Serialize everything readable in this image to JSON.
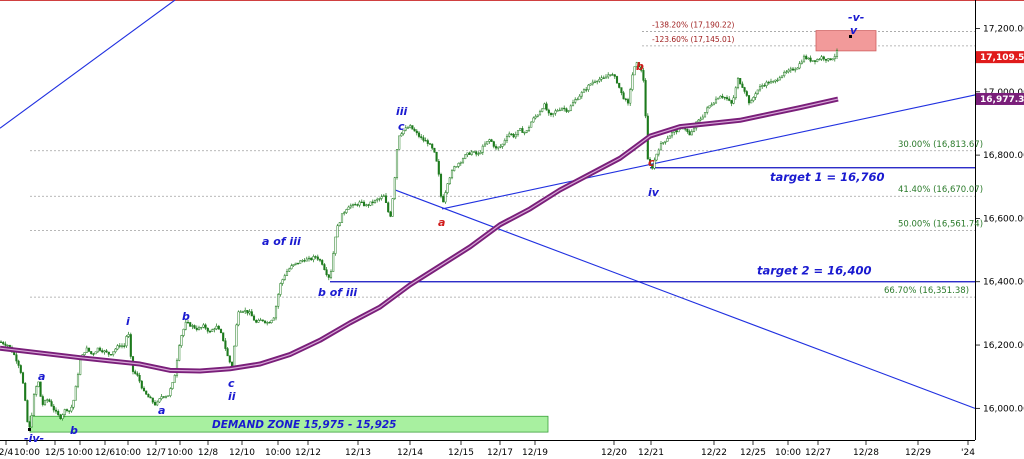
{
  "colors": {
    "candle_up": "#1d7a1d",
    "candle_down": "#1d7a1d",
    "ma": "#7a1f7a",
    "trend": "#2030e0",
    "fib": "#a0a0a0",
    "zone_fill": "#a8f0a0",
    "target_box": "#f29a9a",
    "price_tag": "#e01b1b",
    "ma_tag": "#7a1f7a"
  },
  "chart_data": {
    "type": "candlestick",
    "y_range": [
      15900,
      17290
    ],
    "y_ticks": [
      "17,200.00",
      "17,000.00",
      "16,800.00",
      "16,600.00",
      "16,400.00",
      "16,200.00",
      "16,000.00"
    ],
    "x_ticks": [
      "2/4",
      "10:00",
      "12/5",
      "10:00",
      "12/6",
      "10:00",
      "12/7",
      "10:00",
      "12/8",
      "12/10",
      "10:00",
      "12/12",
      "12/13",
      "12/14",
      "12/15",
      "12/17",
      "12/19",
      "12/20",
      "12/21",
      "12/22",
      "12/25",
      "10:00",
      "12/27",
      "12/28",
      "12/29",
      "'24"
    ],
    "price_path": [
      [
        0,
        16210
      ],
      [
        8,
        16200
      ],
      [
        14,
        16170
      ],
      [
        20,
        16130
      ],
      [
        24,
        16060
      ],
      [
        27,
        15960
      ],
      [
        30,
        15935
      ],
      [
        34,
        16040
      ],
      [
        38,
        16090
      ],
      [
        42,
        16010
      ],
      [
        48,
        16030
      ],
      [
        55,
        15990
      ],
      [
        60,
        15970
      ],
      [
        66,
        16000
      ],
      [
        70,
        15990
      ],
      [
        74,
        16030
      ],
      [
        80,
        16150
      ],
      [
        86,
        16190
      ],
      [
        92,
        16170
      ],
      [
        98,
        16190
      ],
      [
        104,
        16180
      ],
      [
        110,
        16170
      ],
      [
        116,
        16190
      ],
      [
        120,
        16200
      ],
      [
        124,
        16195
      ],
      [
        128,
        16250
      ],
      [
        132,
        16120
      ],
      [
        138,
        16100
      ],
      [
        144,
        16050
      ],
      [
        150,
        16030
      ],
      [
        156,
        16010
      ],
      [
        162,
        16040
      ],
      [
        168,
        16040
      ],
      [
        174,
        16090
      ],
      [
        180,
        16220
      ],
      [
        186,
        16270
      ],
      [
        192,
        16260
      ],
      [
        198,
        16250
      ],
      [
        204,
        16260
      ],
      [
        210,
        16240
      ],
      [
        216,
        16260
      ],
      [
        222,
        16230
      ],
      [
        228,
        16160
      ],
      [
        232,
        16130
      ],
      [
        238,
        16310
      ],
      [
        244,
        16310
      ],
      [
        250,
        16300
      ],
      [
        256,
        16270
      ],
      [
        262,
        16280
      ],
      [
        268,
        16270
      ],
      [
        274,
        16290
      ],
      [
        280,
        16390
      ],
      [
        286,
        16430
      ],
      [
        292,
        16450
      ],
      [
        298,
        16460
      ],
      [
        304,
        16470
      ],
      [
        310,
        16470
      ],
      [
        316,
        16480
      ],
      [
        322,
        16460
      ],
      [
        326,
        16430
      ],
      [
        330,
        16410
      ],
      [
        336,
        16560
      ],
      [
        342,
        16610
      ],
      [
        348,
        16640
      ],
      [
        354,
        16640
      ],
      [
        360,
        16650
      ],
      [
        366,
        16640
      ],
      [
        372,
        16650
      ],
      [
        378,
        16660
      ],
      [
        384,
        16670
      ],
      [
        390,
        16600
      ],
      [
        394,
        16700
      ],
      [
        398,
        16860
      ],
      [
        404,
        16880
      ],
      [
        410,
        16890
      ],
      [
        416,
        16870
      ],
      [
        422,
        16850
      ],
      [
        428,
        16840
      ],
      [
        434,
        16810
      ],
      [
        438,
        16760
      ],
      [
        442,
        16640
      ],
      [
        448,
        16720
      ],
      [
        454,
        16760
      ],
      [
        460,
        16780
      ],
      [
        466,
        16800
      ],
      [
        472,
        16810
      ],
      [
        478,
        16800
      ],
      [
        484,
        16830
      ],
      [
        490,
        16850
      ],
      [
        496,
        16820
      ],
      [
        502,
        16830
      ],
      [
        508,
        16870
      ],
      [
        514,
        16860
      ],
      [
        520,
        16880
      ],
      [
        526,
        16870
      ],
      [
        532,
        16910
      ],
      [
        538,
        16930
      ],
      [
        544,
        16960
      ],
      [
        550,
        16920
      ],
      [
        556,
        16940
      ],
      [
        562,
        16950
      ],
      [
        568,
        16940
      ],
      [
        574,
        16970
      ],
      [
        580,
        16990
      ],
      [
        586,
        17010
      ],
      [
        592,
        17030
      ],
      [
        598,
        17040
      ],
      [
        604,
        17040
      ],
      [
        610,
        17060
      ],
      [
        616,
        17040
      ],
      [
        622,
        16990
      ],
      [
        628,
        16960
      ],
      [
        632,
        17050
      ],
      [
        636,
        17090
      ],
      [
        640,
        17080
      ],
      [
        644,
        17030
      ],
      [
        648,
        16770
      ],
      [
        652,
        16760
      ],
      [
        656,
        16800
      ],
      [
        660,
        16830
      ],
      [
        666,
        16850
      ],
      [
        672,
        16870
      ],
      [
        678,
        16880
      ],
      [
        684,
        16890
      ],
      [
        690,
        16860
      ],
      [
        696,
        16900
      ],
      [
        702,
        16920
      ],
      [
        708,
        16950
      ],
      [
        714,
        16970
      ],
      [
        720,
        16990
      ],
      [
        726,
        16980
      ],
      [
        732,
        16960
      ],
      [
        738,
        17040
      ],
      [
        744,
        17010
      ],
      [
        750,
        16960
      ],
      [
        756,
        17000
      ],
      [
        762,
        17020
      ],
      [
        768,
        17030
      ],
      [
        774,
        17030
      ],
      [
        780,
        17050
      ],
      [
        786,
        17060
      ],
      [
        792,
        17070
      ],
      [
        798,
        17080
      ],
      [
        804,
        17110
      ],
      [
        810,
        17100
      ],
      [
        816,
        17100
      ],
      [
        822,
        17110
      ],
      [
        828,
        17100
      ],
      [
        834,
        17110
      ],
      [
        838,
        17130
      ]
    ],
    "moving_average_path": [
      [
        0,
        16190
      ],
      [
        40,
        16175
      ],
      [
        80,
        16160
      ],
      [
        110,
        16150
      ],
      [
        140,
        16140
      ],
      [
        170,
        16120
      ],
      [
        200,
        16118
      ],
      [
        230,
        16125
      ],
      [
        260,
        16140
      ],
      [
        290,
        16170
      ],
      [
        320,
        16215
      ],
      [
        350,
        16270
      ],
      [
        380,
        16320
      ],
      [
        410,
        16390
      ],
      [
        440,
        16450
      ],
      [
        470,
        16510
      ],
      [
        500,
        16580
      ],
      [
        530,
        16630
      ],
      [
        560,
        16690
      ],
      [
        590,
        16740
      ],
      [
        620,
        16790
      ],
      [
        650,
        16860
      ],
      [
        680,
        16890
      ],
      [
        710,
        16900
      ],
      [
        740,
        16910
      ],
      [
        770,
        16930
      ],
      [
        800,
        16950
      ],
      [
        838,
        16977
      ]
    ],
    "trend_lines": [
      {
        "from": [
          0,
          16885
        ],
        "to": [
          175,
          17290
        ]
      },
      {
        "from": [
          395,
          16690
        ],
        "to": [
          975,
          16000
        ]
      },
      {
        "from": [
          442,
          16630
        ],
        "to": [
          975,
          16990
        ]
      }
    ],
    "horizontal_lines": [
      {
        "from_x": 650,
        "to_x": 975,
        "price": 16760
      },
      {
        "from_x": 330,
        "to_x": 975,
        "price": 16400
      }
    ],
    "fib_levels": [
      {
        "label": "-138.20% (17,190.22)",
        "price": 17190.22,
        "top": true
      },
      {
        "label": "-123.60% (17,145.01)",
        "price": 17145.01,
        "top": true
      },
      {
        "label": "30.00% (16,813.67)",
        "price": 16813.67,
        "top": false
      },
      {
        "label": "41.40% (16,670.07)",
        "price": 16670.07,
        "top": false
      },
      {
        "label": "50.00% (16,561.74)",
        "price": 16561.74,
        "top": false
      },
      {
        "label": "66.70% (16,351.38)",
        "price": 16351.38,
        "top": false
      }
    ],
    "target_box": {
      "price_top": 17190.22,
      "price_bottom": 17145.01
    },
    "price_tag": "17,109.50",
    "price_tag_value": 17109.5,
    "ma_tag": "16,977.33",
    "ma_tag_value": 16977.33,
    "demand_zone": {
      "label": "DEMAND ZONE 15,975 - 15,925",
      "price_top": 15975,
      "price_bottom": 15925
    },
    "targets": [
      {
        "label": "target 1 = 16,760"
      },
      {
        "label": "target 2 = 16,400"
      }
    ],
    "wave_labels": [
      {
        "text": "-iv-",
        "color": "blue"
      },
      {
        "text": "a",
        "color": "blue"
      },
      {
        "text": "b",
        "color": "blue"
      },
      {
        "text": "i",
        "color": "blue"
      },
      {
        "text": "a",
        "color": "blue"
      },
      {
        "text": "b",
        "color": "blue"
      },
      {
        "text": "c",
        "color": "blue"
      },
      {
        "text": "ii",
        "color": "blue"
      },
      {
        "text": "a of iii",
        "color": "blue"
      },
      {
        "text": "b of iii",
        "color": "blue"
      },
      {
        "text": "iii",
        "color": "blue"
      },
      {
        "text": "c",
        "color": "blue"
      },
      {
        "text": "a",
        "color": "red"
      },
      {
        "text": "b",
        "color": "red"
      },
      {
        "text": "c",
        "color": "red"
      },
      {
        "text": "iv",
        "color": "blue"
      },
      {
        "text": "-v-",
        "color": "blue"
      },
      {
        "text": "v",
        "color": "blue"
      }
    ]
  }
}
